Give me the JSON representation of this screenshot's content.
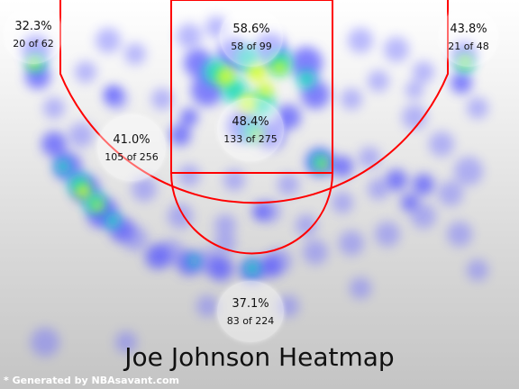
{
  "title": "Joe Johnson Heatmap",
  "credit": "* Generated by NBAsavant.com",
  "colors": {
    "court_lines": "#ff0000",
    "heat_low": "#7070ff",
    "heat_mid": "#00e0c0",
    "heat_high": "#ffff00"
  },
  "zones": [
    {
      "id": "left-corner-three",
      "pct": "32.3%",
      "made_of": "20 of 62"
    },
    {
      "id": "paint-close",
      "pct": "58.6%",
      "made_of": "58 of 99"
    },
    {
      "id": "right-corner-three",
      "pct": "43.8%",
      "made_of": "21 of 48"
    },
    {
      "id": "left-midrange",
      "pct": "41.0%",
      "made_of": "105 of 256"
    },
    {
      "id": "paint-far",
      "pct": "48.4%",
      "made_of": "133 of 275"
    },
    {
      "id": "top-of-key-three",
      "pct": "37.1%",
      "made_of": "83 of 224"
    }
  ]
}
